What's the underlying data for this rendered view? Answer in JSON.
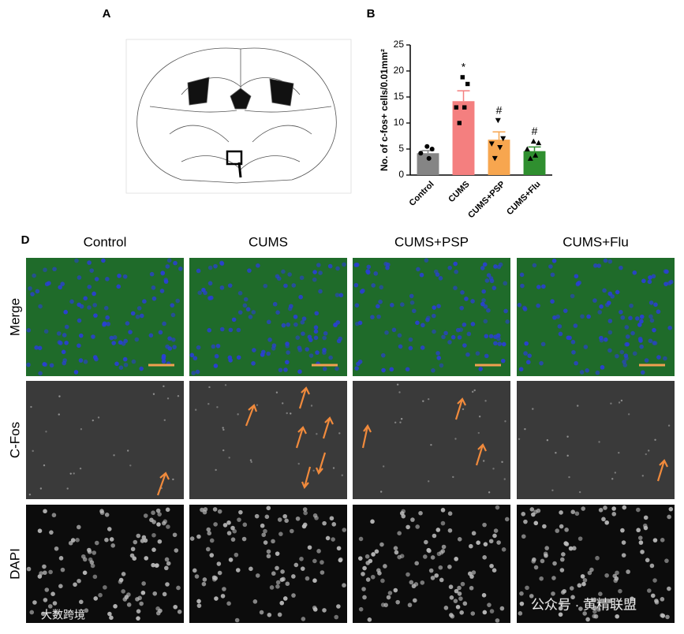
{
  "panels": {
    "a": "A",
    "b": "B",
    "d": "D"
  },
  "columns": [
    "Control",
    "CUMS",
    "CUMS+PSP",
    "CUMS+Flu"
  ],
  "rows": [
    "Merge",
    "C-Fos",
    "DAPI"
  ],
  "watermarks": [
    "公众号 · 黄精联盟",
    "大数跨境"
  ],
  "chart_data": {
    "type": "bar",
    "ylabel": "No. of c-fos+ cells/0.01mm²",
    "categories": [
      "Control",
      "CUMS",
      "CUMS+PSP",
      "CUMS+Flu"
    ],
    "values": [
      4.2,
      14.2,
      6.8,
      4.6
    ],
    "errors": [
      0.5,
      2.0,
      1.5,
      0.8
    ],
    "colors": [
      "#858585",
      "#f47f7f",
      "#f7a64f",
      "#2f8f2f"
    ],
    "points": [
      [
        5.5,
        5.0,
        4.2,
        3.2
      ],
      [
        18.8,
        17.5,
        13.0,
        13.0,
        10.0
      ],
      [
        10.5,
        7.0,
        6.0,
        5.3,
        3.2
      ],
      [
        6.5,
        6.2,
        5.0,
        3.8,
        3.2
      ]
    ],
    "annotations": [
      "",
      "*",
      "#",
      "#"
    ],
    "ylim": [
      0,
      25
    ],
    "yticks": [
      0,
      5,
      10,
      15,
      20,
      25
    ]
  }
}
